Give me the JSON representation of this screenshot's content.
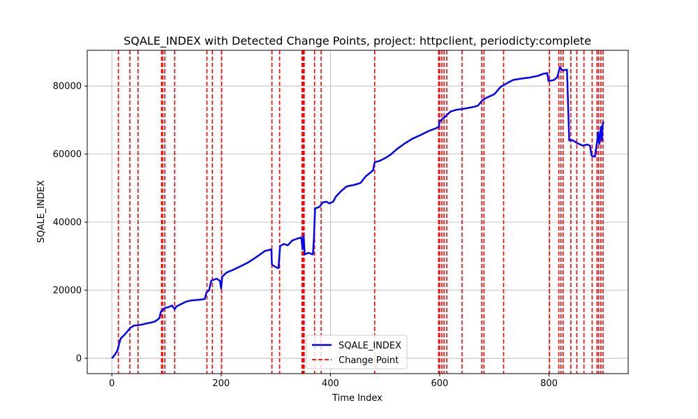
{
  "chart_data": {
    "type": "line",
    "title": "SQALE_INDEX with Detected Change Points, project: httpclient, periodicty:complete",
    "xlabel": "Time Index",
    "ylabel": "SQALE_INDEX",
    "xlim": [
      -45,
      945
    ],
    "ylim": [
      -4500,
      90500
    ],
    "xticks": [
      0,
      200,
      400,
      600,
      800
    ],
    "yticks": [
      0,
      20000,
      40000,
      60000,
      80000
    ],
    "grid": true,
    "legend_position": "bottom-center",
    "series": [
      {
        "name": "SQALE_INDEX",
        "color": "#0000ff",
        "points": [
          [
            0,
            0
          ],
          [
            5,
            900
          ],
          [
            10,
            2200
          ],
          [
            13,
            4000
          ],
          [
            16,
            5800
          ],
          [
            22,
            6700
          ],
          [
            28,
            7800
          ],
          [
            33,
            8800
          ],
          [
            40,
            9600
          ],
          [
            48,
            9700
          ],
          [
            55,
            9900
          ],
          [
            62,
            10200
          ],
          [
            72,
            10500
          ],
          [
            80,
            10900
          ],
          [
            87,
            11800
          ],
          [
            90,
            13800
          ],
          [
            93,
            14000
          ],
          [
            97,
            14800
          ],
          [
            103,
            15000
          ],
          [
            110,
            15500
          ],
          [
            115,
            14400
          ],
          [
            118,
            15200
          ],
          [
            125,
            15800
          ],
          [
            135,
            16600
          ],
          [
            145,
            17000
          ],
          [
            160,
            17200
          ],
          [
            170,
            17400
          ],
          [
            173,
            19300
          ],
          [
            178,
            20000
          ],
          [
            182,
            22800
          ],
          [
            192,
            23400
          ],
          [
            198,
            22700
          ],
          [
            200,
            20500
          ],
          [
            202,
            24000
          ],
          [
            210,
            25200
          ],
          [
            222,
            26000
          ],
          [
            235,
            27000
          ],
          [
            250,
            28200
          ],
          [
            265,
            29800
          ],
          [
            280,
            31500
          ],
          [
            292,
            32000
          ],
          [
            293,
            27500
          ],
          [
            300,
            26800
          ],
          [
            305,
            26500
          ],
          [
            308,
            33000
          ],
          [
            315,
            33600
          ],
          [
            322,
            33200
          ],
          [
            330,
            34600
          ],
          [
            340,
            35200
          ],
          [
            347,
            35500
          ],
          [
            349,
            32000
          ],
          [
            351,
            36000
          ],
          [
            353,
            30500
          ],
          [
            360,
            31000
          ],
          [
            368,
            30500
          ],
          [
            370,
            35800
          ],
          [
            372,
            44000
          ],
          [
            380,
            44500
          ],
          [
            386,
            45800
          ],
          [
            393,
            46000
          ],
          [
            398,
            45500
          ],
          [
            405,
            46000
          ],
          [
            410,
            47500
          ],
          [
            420,
            49200
          ],
          [
            430,
            50500
          ],
          [
            445,
            51000
          ],
          [
            455,
            51500
          ],
          [
            465,
            53500
          ],
          [
            478,
            55200
          ],
          [
            481,
            57600
          ],
          [
            490,
            58000
          ],
          [
            500,
            58800
          ],
          [
            510,
            59800
          ],
          [
            522,
            61500
          ],
          [
            535,
            63000
          ],
          [
            550,
            64500
          ],
          [
            565,
            65600
          ],
          [
            580,
            66800
          ],
          [
            592,
            67500
          ],
          [
            598,
            68000
          ],
          [
            600,
            69500
          ],
          [
            605,
            70300
          ],
          [
            610,
            71000
          ],
          [
            620,
            72500
          ],
          [
            630,
            73000
          ],
          [
            640,
            73200
          ],
          [
            650,
            73500
          ],
          [
            660,
            73800
          ],
          [
            670,
            74200
          ],
          [
            678,
            75800
          ],
          [
            685,
            76500
          ],
          [
            700,
            77600
          ],
          [
            712,
            79800
          ],
          [
            720,
            80500
          ],
          [
            725,
            81000
          ],
          [
            735,
            81800
          ],
          [
            750,
            82200
          ],
          [
            765,
            82500
          ],
          [
            780,
            83000
          ],
          [
            790,
            83600
          ],
          [
            797,
            83800
          ],
          [
            799,
            81500
          ],
          [
            808,
            81700
          ],
          [
            815,
            82500
          ],
          [
            820,
            85500
          ],
          [
            825,
            84600
          ],
          [
            833,
            84800
          ],
          [
            837,
            64000
          ],
          [
            843,
            64100
          ],
          [
            852,
            63200
          ],
          [
            862,
            62500
          ],
          [
            870,
            62800
          ],
          [
            875,
            62500
          ],
          [
            878,
            59500
          ],
          [
            884,
            59200
          ],
          [
            888,
            63500
          ],
          [
            890,
            66500
          ],
          [
            892,
            63000
          ],
          [
            895,
            68000
          ],
          [
            897,
            64000
          ],
          [
            898,
            68500
          ],
          [
            900,
            69500
          ]
        ]
      },
      {
        "name": "Change Point",
        "color": "#ff0000",
        "style": "dashed",
        "x": [
          12,
          33,
          48,
          91,
          93,
          97,
          115,
          174,
          184,
          201,
          293,
          307,
          348,
          350,
          352,
          371,
          383,
          481,
          598,
          600,
          604,
          608,
          613,
          641,
          677,
          681,
          717,
          801,
          818,
          822,
          826,
          840,
          851,
          864,
          879,
          888,
          891,
          895,
          899
        ]
      }
    ]
  }
}
